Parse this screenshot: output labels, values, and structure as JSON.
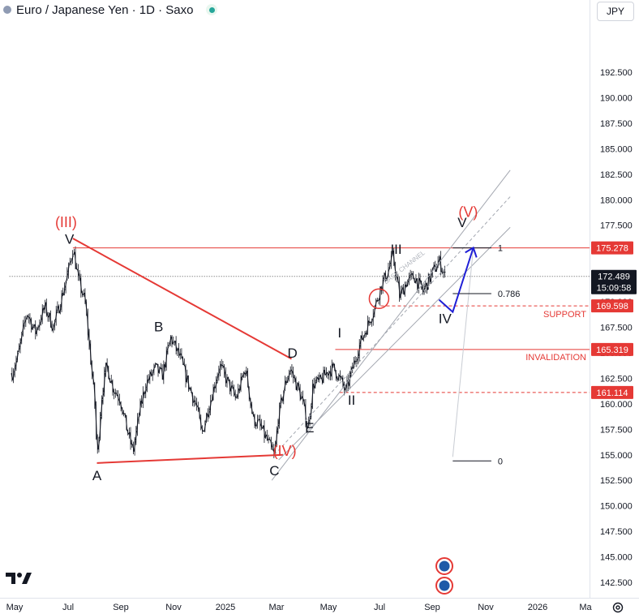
{
  "header": {
    "title": "Euro / Japanese Yen · 1D · Saxo",
    "currency": "JPY"
  },
  "colors": {
    "red": "#e53935",
    "blue": "#1f1fd6",
    "black": "#131722",
    "gray": "#9aa0ab",
    "price_label_bg": "#131722"
  },
  "icons": [
    "tradingview-logo",
    "settings-gear-icon",
    "visibility-eye-icon",
    "event-marker-icon"
  ],
  "chart_data": {
    "type": "candlestick",
    "title": "Euro / Japanese Yen · 1D · Saxo",
    "ylim": [
      141.5,
      194.6
    ],
    "y_ticks": [
      "142.500",
      "145.000",
      "147.500",
      "150.000",
      "152.500",
      "155.000",
      "157.500",
      "160.000",
      "162.500",
      "165.000",
      "167.500",
      "170.000",
      "172.500",
      "175.000",
      "177.500",
      "180.000",
      "182.500",
      "185.000",
      "187.500",
      "190.000",
      "192.500"
    ],
    "x_ticks": [
      "May",
      "Jul",
      "Sep",
      "Nov",
      "2025",
      "Mar",
      "May",
      "Jul",
      "Sep",
      "Nov",
      "2026",
      "Ma"
    ],
    "price_path": [
      [
        "2024-04-28",
        163.0
      ],
      [
        "2024-05-05",
        164.8
      ],
      [
        "2024-05-15",
        169.0
      ],
      [
        "2024-05-25",
        167.0
      ],
      [
        "2024-06-05",
        169.5
      ],
      [
        "2024-06-15",
        167.5
      ],
      [
        "2024-06-28",
        171.5
      ],
      [
        "2024-07-04",
        173.6
      ],
      [
        "2024-07-08",
        175.3
      ],
      [
        "2024-07-14",
        172.2
      ],
      [
        "2024-07-22",
        170.0
      ],
      [
        "2024-07-29",
        164.0
      ],
      [
        "2024-08-03",
        159.5
      ],
      [
        "2024-08-05",
        154.4
      ],
      [
        "2024-08-10",
        160.5
      ],
      [
        "2024-08-16",
        163.8
      ],
      [
        "2024-08-24",
        161.5
      ],
      [
        "2024-09-01",
        160.5
      ],
      [
        "2024-09-08",
        157.8
      ],
      [
        "2024-09-16",
        155.3
      ],
      [
        "2024-09-24",
        159.5
      ],
      [
        "2024-10-01",
        162.0
      ],
      [
        "2024-10-12",
        163.5
      ],
      [
        "2024-10-20",
        162.8
      ],
      [
        "2024-10-30",
        166.5
      ],
      [
        "2024-11-10",
        164.5
      ],
      [
        "2024-11-20",
        161.8
      ],
      [
        "2024-11-30",
        159.5
      ],
      [
        "2024-12-05",
        157.0
      ],
      [
        "2024-12-15",
        160.3
      ],
      [
        "2024-12-26",
        163.8
      ],
      [
        "2025-01-05",
        162.0
      ],
      [
        "2025-01-14",
        160.5
      ],
      [
        "2025-01-25",
        163.5
      ],
      [
        "2025-02-03",
        158.5
      ],
      [
        "2025-02-10",
        158.0
      ],
      [
        "2025-02-22",
        156.0
      ],
      [
        "2025-02-28",
        154.8
      ],
      [
        "2025-03-04",
        158.5
      ],
      [
        "2025-03-11",
        161.5
      ],
      [
        "2025-03-18",
        163.5
      ],
      [
        "2025-03-25",
        162.0
      ],
      [
        "2025-04-01",
        160.5
      ],
      [
        "2025-04-08",
        157.5
      ],
      [
        "2025-04-14",
        162.0
      ],
      [
        "2025-04-22",
        162.2
      ],
      [
        "2025-05-01",
        163.2
      ],
      [
        "2025-05-08",
        163.5
      ],
      [
        "2025-05-15",
        162.5
      ],
      [
        "2025-05-22",
        161.2
      ],
      [
        "2025-05-30",
        163.5
      ],
      [
        "2025-06-08",
        166.0
      ],
      [
        "2025-06-18",
        168.0
      ],
      [
        "2025-06-25",
        169.5
      ],
      [
        "2025-07-02",
        171.5
      ],
      [
        "2025-07-10",
        173.0
      ],
      [
        "2025-07-16",
        174.5
      ],
      [
        "2025-07-24",
        170.5
      ],
      [
        "2025-08-01",
        172.0
      ],
      [
        "2025-08-10",
        172.5
      ],
      [
        "2025-08-20",
        171.0
      ],
      [
        "2025-09-01",
        173.0
      ],
      [
        "2025-09-08",
        174.0
      ],
      [
        "2025-09-15",
        172.5
      ]
    ],
    "last_price": "172.489",
    "countdown": "15:09:58",
    "price_labels": [
      {
        "text": "175.278",
        "value": 175.278,
        "style": "red"
      },
      {
        "text": "169.598",
        "value": 169.598,
        "style": "red"
      },
      {
        "text": "165.319",
        "value": 165.319,
        "style": "red"
      },
      {
        "text": "161.114",
        "value": 161.114,
        "style": "red"
      }
    ],
    "horizontal_lines": [
      {
        "value": 175.278,
        "x_from": "2024-07-08",
        "style": "solid-red"
      },
      {
        "value": 169.598,
        "x_from": "2025-07-02",
        "label": "SUPPORT",
        "style": "dashed-red"
      },
      {
        "value": 165.319,
        "x_from": "2025-05-10",
        "label": "INVALIDATION",
        "style": "solid-red"
      },
      {
        "value": 161.114,
        "x_from": "2025-05-15",
        "style": "dashed-red"
      },
      {
        "value": 172.489,
        "x_from": "2024-04-25",
        "style": "dotted-black"
      }
    ],
    "triangle_lines": [
      {
        "from": [
          "2024-07-08",
          176.2
        ],
        "to": [
          "2025-03-20",
          164.4
        ]
      },
      {
        "from": [
          "2024-08-05",
          154.2
        ],
        "to": [
          "2025-03-10",
          155.0
        ]
      }
    ],
    "channel_lines": [
      {
        "from": [
          "2025-02-25",
          152.5
        ],
        "to": [
          "2025-11-30",
          182.9
        ],
        "style": "solid-gray"
      },
      {
        "from": [
          "2025-02-28",
          155.0
        ],
        "to": [
          "2025-11-30",
          180.3
        ],
        "style": "dashed-gray"
      },
      {
        "from": [
          "2025-03-05",
          154.5
        ],
        "to": [
          "2025-11-30",
          177.3
        ],
        "style": "solid-gray"
      }
    ],
    "channel_label": "BASE CHANNEL",
    "projection_path": [
      [
        "2025-09-08",
        170.2
      ],
      [
        "2025-09-24",
        169.0
      ],
      [
        "2025-10-18",
        175.3
      ]
    ],
    "fib_levels": [
      {
        "label": "1",
        "value": 175.278
      },
      {
        "label": "0.786",
        "value": 170.8
      },
      {
        "label": "0",
        "value": 154.4
      }
    ],
    "fib_trend_line": {
      "from": [
        "2025-09-24",
        154.8
      ],
      "to": [
        "2025-10-18",
        175.3
      ]
    },
    "wave_labels": [
      {
        "text": "(III)",
        "x": "2024-06-30",
        "y": 177.3,
        "color": "red"
      },
      {
        "text": "V",
        "x": "2024-07-04",
        "y": 175.7,
        "color": "black"
      },
      {
        "text": "B",
        "x": "2024-10-16",
        "y": 167.1,
        "color": "black"
      },
      {
        "text": "A",
        "x": "2024-08-05",
        "y": 152.5,
        "color": "black"
      },
      {
        "text": "C",
        "x": "2025-02-28",
        "y": 153.0,
        "color": "black"
      },
      {
        "text": "(IV)",
        "x": "2025-03-12",
        "y": 154.9,
        "color": "red"
      },
      {
        "text": "D",
        "x": "2025-03-21",
        "y": 164.5,
        "color": "black"
      },
      {
        "text": "E",
        "x": "2025-04-10",
        "y": 157.2,
        "color": "black"
      },
      {
        "text": "I",
        "x": "2025-05-15",
        "y": 166.5,
        "color": "black"
      },
      {
        "text": "II",
        "x": "2025-05-29",
        "y": 159.9,
        "color": "black"
      },
      {
        "text": "III",
        "x": "2025-07-20",
        "y": 174.7,
        "color": "black"
      },
      {
        "text": "IV",
        "x": "2025-09-15",
        "y": 167.9,
        "color": "black"
      },
      {
        "text": "V",
        "x": "2025-10-05",
        "y": 177.3,
        "color": "black"
      },
      {
        "text": "(V)",
        "x": "2025-10-12",
        "y": 178.3,
        "color": "red"
      }
    ],
    "markers": [
      {
        "type": "circle",
        "x": "2025-06-30",
        "y": 170.3
      }
    ]
  }
}
